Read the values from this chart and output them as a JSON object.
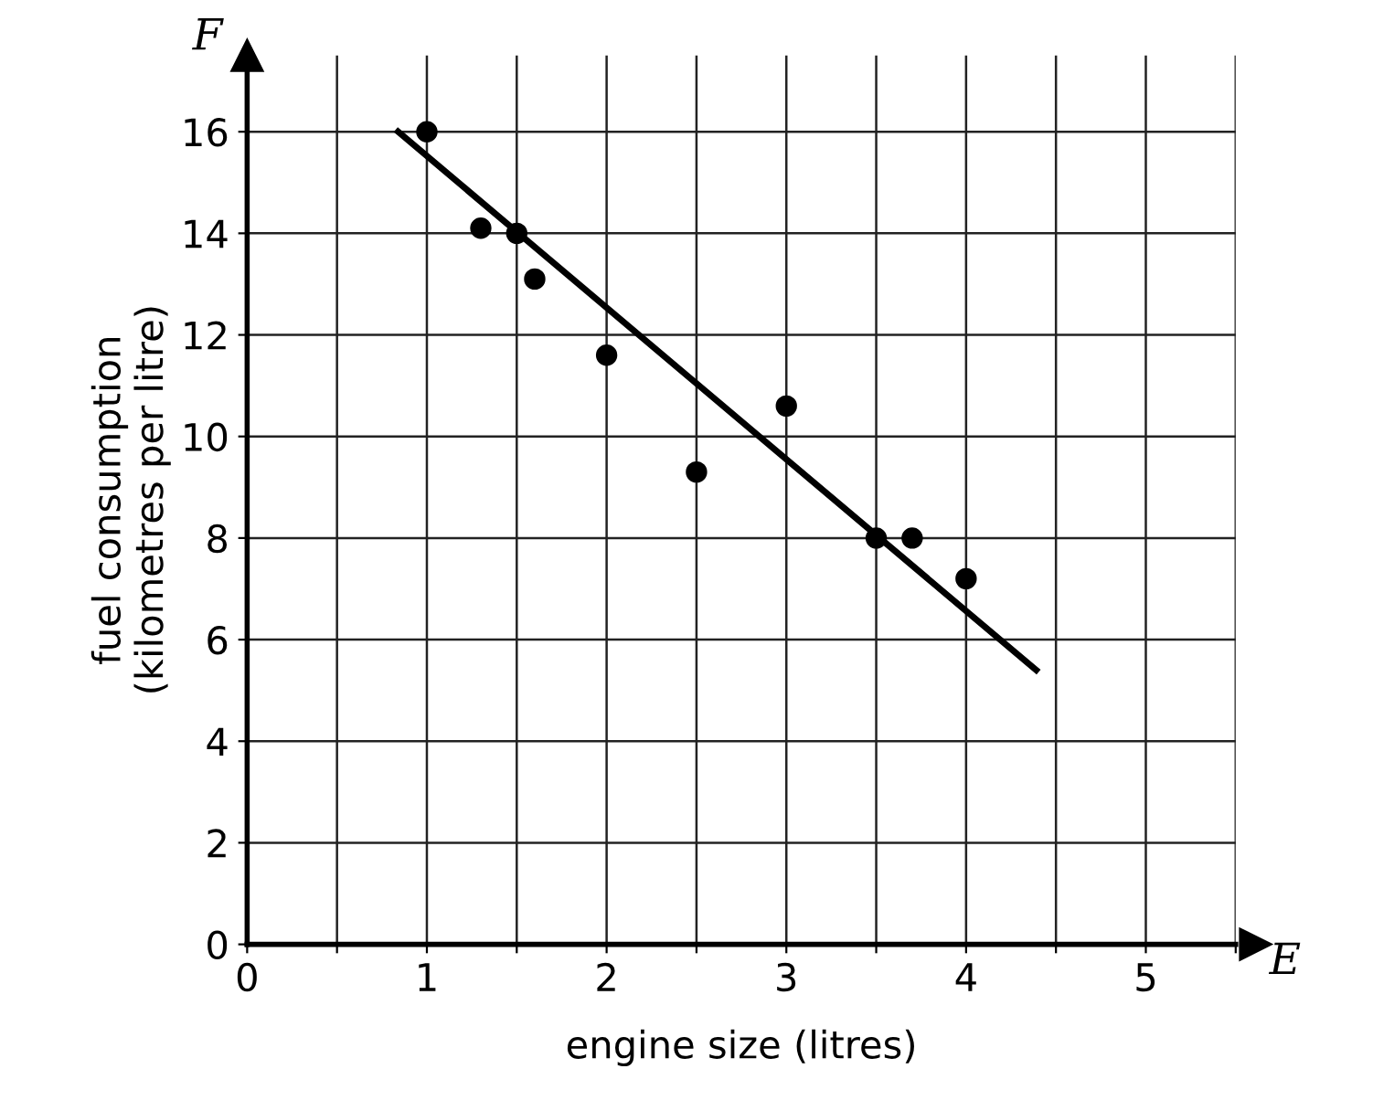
{
  "chart_data": {
    "type": "scatter",
    "xlabel": "engine size (litres)",
    "ylabel": "fuel consumption\n(kilometres per litre)",
    "annotations": [
      "F",
      "E"
    ],
    "series": [
      {
        "type": "scatter",
        "color": "#000000",
        "x": [
          1,
          1.3,
          1.5,
          1.6,
          2,
          2.5,
          3,
          3.5,
          3.7,
          4
        ],
        "values": [
          16,
          14.1,
          14,
          13.1,
          11.6,
          9.3,
          10.6,
          8,
          8,
          7.2
        ]
      },
      {
        "type": "line",
        "marker": "none",
        "color": "#000000",
        "x": [
          0.84,
          4.39
        ],
        "values": [
          16,
          5.4
        ]
      }
    ],
    "xlim": [
      0,
      5.5
    ],
    "ylim": [
      0,
      17.5
    ],
    "xticks": [
      0,
      {
        "value": 0.5,
        "label": null
      },
      1,
      {
        "value": 1.5,
        "label": null
      },
      2,
      {
        "value": 2.5,
        "label": null
      },
      3,
      {
        "value": 3.5,
        "label": null
      },
      4,
      {
        "value": 4.5,
        "label": null
      },
      5,
      {
        "value": 5.5,
        "label": null
      }
    ],
    "yticks": [
      0,
      2,
      4,
      6,
      8,
      10,
      12,
      14,
      16
    ],
    "grid": true,
    "marker": "circle"
  }
}
